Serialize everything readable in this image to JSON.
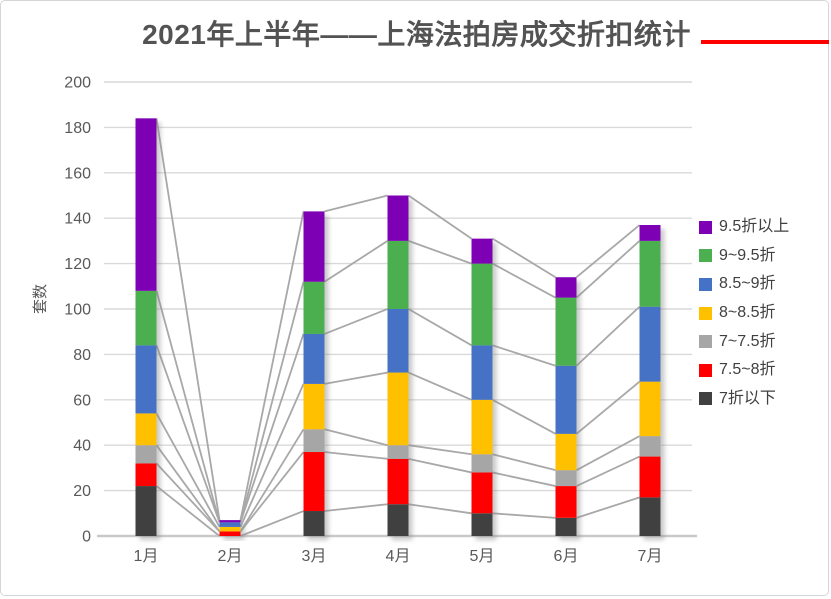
{
  "title": {
    "text": "2021年上半年——上海法拍房成交折扣统计",
    "text_color": "#535353",
    "accent_color": "#ff0000"
  },
  "chart_data": {
    "type": "bar",
    "stacked": true,
    "title": "2021年上半年——上海法拍房成交折扣统计",
    "xlabel": "",
    "ylabel": "套数",
    "ylim": [
      0,
      200
    ],
    "ytick_step": 20,
    "yticks": [
      0,
      20,
      40,
      60,
      80,
      100,
      120,
      140,
      160,
      180,
      200
    ],
    "grid": true,
    "series_connector_lines": true,
    "legend_position": "right",
    "categories": [
      "1月",
      "2月",
      "3月",
      "4月",
      "5月",
      "6月",
      "7月"
    ],
    "series": [
      {
        "name": "7折以下",
        "color": "#404040",
        "values": [
          22,
          0,
          11,
          14,
          10,
          8,
          17
        ]
      },
      {
        "name": "7.5~8折",
        "color": "#ff0000",
        "values": [
          10,
          2,
          26,
          20,
          18,
          14,
          18
        ]
      },
      {
        "name": "7~7.5折",
        "color": "#a6a6a6",
        "values": [
          8,
          0,
          10,
          6,
          8,
          7,
          9
        ]
      },
      {
        "name": "8~8.5折",
        "color": "#ffc000",
        "values": [
          14,
          2,
          20,
          32,
          24,
          16,
          24
        ]
      },
      {
        "name": "8.5~9折",
        "color": "#4472c4",
        "values": [
          30,
          2,
          22,
          28,
          24,
          30,
          33
        ]
      },
      {
        "name": "9~9.5折",
        "color": "#4caf50",
        "values": [
          24,
          0,
          23,
          30,
          36,
          30,
          29
        ]
      },
      {
        "name": "9.5折以上",
        "color": "#7d00b5",
        "values": [
          76,
          1,
          31,
          20,
          11,
          9,
          7
        ]
      }
    ],
    "totals": [
      184,
      7,
      143,
      150,
      131,
      114,
      137
    ],
    "legend": [
      {
        "label": "9.5折以上",
        "color": "#7d00b5"
      },
      {
        "label": "9~9.5折",
        "color": "#4caf50"
      },
      {
        "label": "8.5~9折",
        "color": "#4472c4"
      },
      {
        "label": "8~8.5折",
        "color": "#ffc000"
      },
      {
        "label": "7~7.5折",
        "color": "#a6a6a6"
      },
      {
        "label": "7.5~8折",
        "color": "#ff0000"
      },
      {
        "label": "7折以下",
        "color": "#404040"
      }
    ],
    "colors": {
      "gridline": "#d9d9d9",
      "axis_line": "#c9c9c9",
      "connector_line": "#a8a8a8",
      "tick_label": "#595959"
    }
  }
}
